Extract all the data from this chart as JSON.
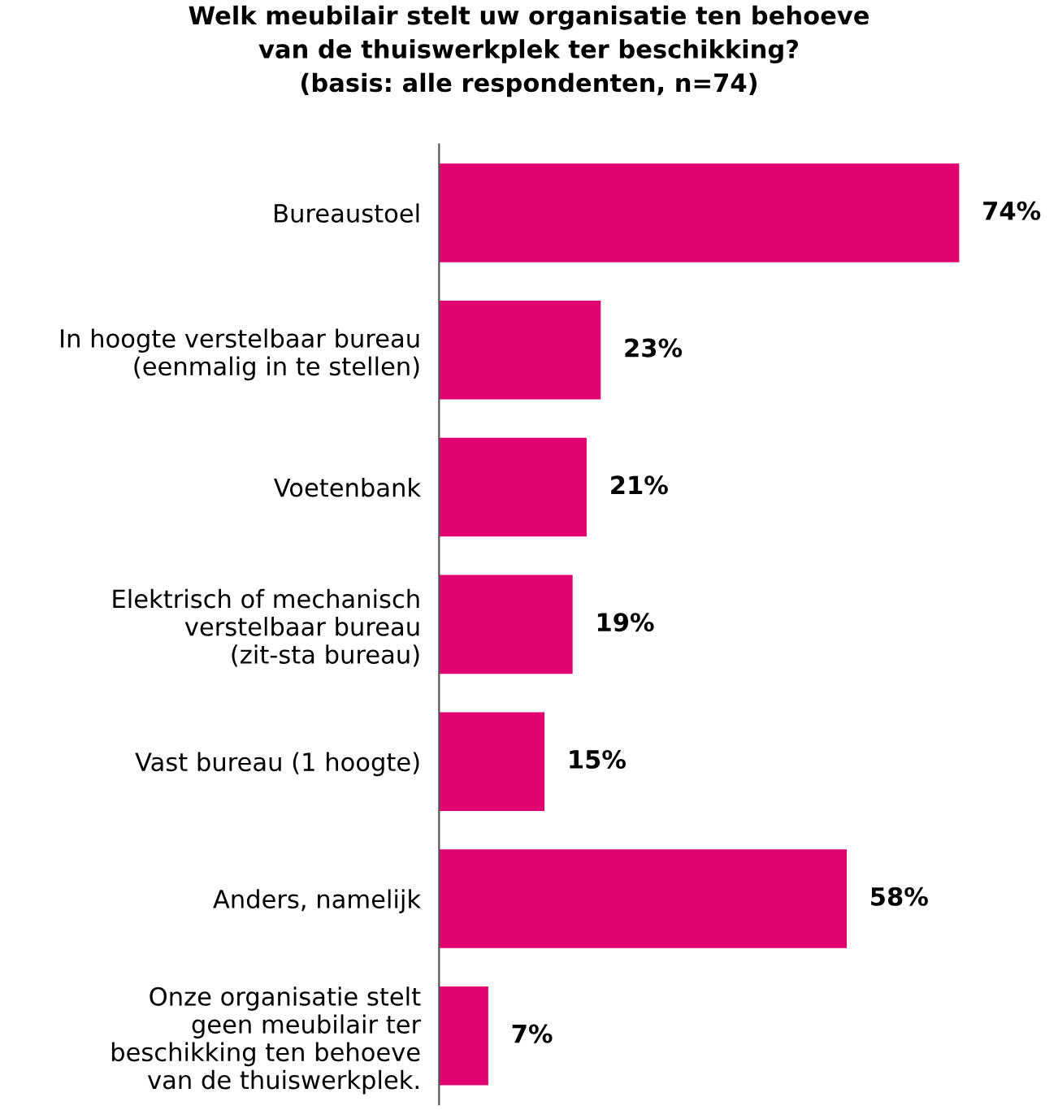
{
  "chart_data": {
    "type": "bar",
    "orientation": "horizontal",
    "title": "Welk meubilair stelt uw organisatie ten behoeve\nvan de thuiswerkplek ter beschikking?\n(basis: alle respondenten, n=74)",
    "categories": [
      "Bureaustoel",
      "In hoogte verstelbaar bureau\n(eenmalig in te stellen)",
      "Voetenbank",
      "Elektrisch of mechanisch\nverstelbaar bureau\n(zit-sta bureau)",
      "Vast bureau (1 hoogte)",
      "Anders, namelijk",
      "Onze organisatie stelt\ngeen meubilair ter\nbeschikking ten behoeve\nvan de thuiswerkplek."
    ],
    "values": [
      74,
      23,
      21,
      19,
      15,
      58,
      7
    ],
    "value_labels": [
      "74%",
      "23%",
      "21%",
      "19%",
      "15%",
      "58%",
      "7%"
    ],
    "color": "#e0006f",
    "grid": false,
    "legend": false
  }
}
